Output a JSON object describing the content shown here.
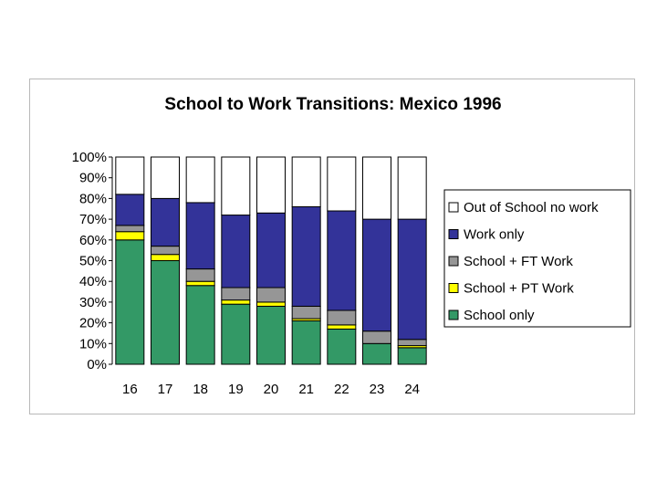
{
  "chart_data": {
    "type": "bar",
    "stacked": true,
    "percent": true,
    "title": "School to Work Transitions: Mexico 1996",
    "xlabel": "",
    "ylabel": "",
    "ylim": [
      0,
      100
    ],
    "yticks": [
      "0%",
      "10%",
      "20%",
      "30%",
      "40%",
      "50%",
      "60%",
      "70%",
      "80%",
      "90%",
      "100%"
    ],
    "categories": [
      "16",
      "17",
      "18",
      "19",
      "20",
      "21",
      "22",
      "23",
      "24"
    ],
    "legend_position": "right",
    "series": [
      {
        "name": "School only",
        "color": "#339966",
        "values": [
          60,
          50,
          38,
          29,
          28,
          21,
          17,
          10,
          8
        ]
      },
      {
        "name": "School + PT Work",
        "color": "#ffff00",
        "values": [
          4,
          3,
          2,
          2,
          2,
          1,
          2,
          0,
          1
        ]
      },
      {
        "name": "School + FT Work",
        "color": "#969696",
        "values": [
          3,
          4,
          6,
          6,
          7,
          6,
          7,
          6,
          3
        ]
      },
      {
        "name": "Work only",
        "color": "#333399",
        "values": [
          15,
          23,
          32,
          35,
          36,
          48,
          48,
          54,
          58
        ]
      },
      {
        "name": "Out of School no work",
        "color": "#ffffff",
        "values": [
          18,
          20,
          22,
          28,
          27,
          24,
          26,
          30,
          30
        ]
      }
    ],
    "legend_order": [
      "Out of School no work",
      "Work only",
      "School + FT Work",
      "School + PT Work",
      "School only"
    ]
  }
}
